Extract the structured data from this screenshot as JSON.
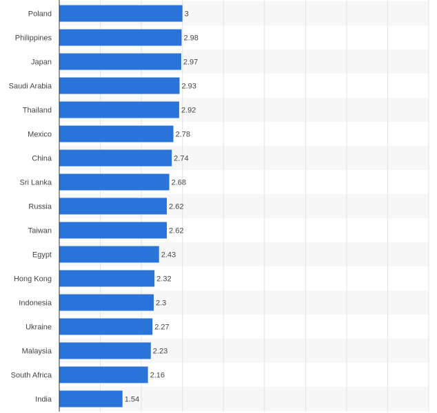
{
  "chart_data": {
    "type": "bar",
    "orientation": "horizontal",
    "categories": [
      "Poland",
      "Philippines",
      "Japan",
      "Saudi Arabia",
      "Thailand",
      "Mexico",
      "China",
      "Sri Lanka",
      "Russia",
      "Taiwan",
      "Egypt",
      "Hong Kong",
      "Indonesia",
      "Ukraine",
      "Malaysia",
      "South Africa",
      "India"
    ],
    "values": [
      3,
      2.98,
      2.97,
      2.93,
      2.92,
      2.78,
      2.74,
      2.68,
      2.62,
      2.62,
      2.43,
      2.32,
      2.3,
      2.27,
      2.23,
      2.16,
      1.54
    ],
    "value_labels": [
      "3",
      "2.98",
      "2.97",
      "2.93",
      "2.92",
      "2.78",
      "2.74",
      "2.68",
      "2.62",
      "2.62",
      "2.43",
      "2.32",
      "2.3",
      "2.27",
      "2.23",
      "2.16",
      "1.54"
    ],
    "xlim": [
      0,
      9
    ],
    "grid": true,
    "bar_color": "#2a74d9",
    "stripe_color": "#f7f7f7",
    "grid_color": "#e3e3e3"
  }
}
